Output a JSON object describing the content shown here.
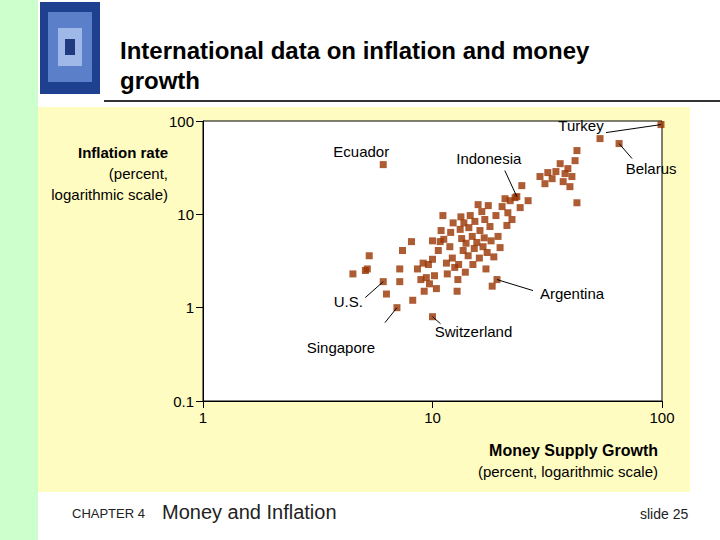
{
  "slide": {
    "title": "International data on inflation and money growth",
    "chapter": "CHAPTER 4",
    "chapter_title": "Money and Inflation",
    "slide_number": "slide 25"
  },
  "chart_data": {
    "type": "scatter",
    "x_label": [
      "Money Supply Growth",
      "(percent, logarithmic scale)"
    ],
    "y_label": [
      "Inflation rate",
      "(percent,",
      "logarithmic scale)"
    ],
    "x": [
      4.5,
      5.1,
      5.3,
      5.2,
      6.1,
      6.1,
      6.3,
      7.0,
      7.2,
      7.2,
      7.4,
      8.1,
      8.2,
      8.6,
      8.9,
      9.1,
      9.2,
      9.4,
      9.6,
      9.7,
      10.0,
      10.0,
      10.0,
      10.2,
      10.4,
      10.6,
      10.8,
      10.9,
      11.1,
      11.2,
      11.5,
      11.6,
      11.9,
      12.0,
      12.2,
      12.3,
      12.5,
      12.8,
      12.9,
      13.0,
      13.2,
      13.3,
      13.4,
      13.6,
      13.7,
      13.9,
      14.0,
      14.3,
      14.4,
      14.6,
      14.9,
      15.0,
      15.2,
      15.3,
      15.6,
      15.8,
      16.0,
      16.1,
      16.4,
      16.6,
      16.8,
      16.9,
      17.1,
      17.3,
      17.5,
      17.8,
      18.0,
      18.2,
      18.5,
      18.9,
      19.1,
      19.3,
      19.7,
      20.1,
      20.7,
      21.1,
      21.3,
      21.8,
      22.2,
      22.9,
      23.3,
      24.1,
      24.5,
      26.1,
      29.4,
      30.9,
      31.8,
      33.2,
      34.5,
      36.0,
      37.1,
      37.8,
      38.9,
      39.7,
      40.5,
      41.8,
      42.6,
      42.6,
      53.7,
      65.0,
      99.0
    ],
    "values": [
      2.3,
      2.5,
      3.6,
      2.6,
      34.1,
      1.9,
      1.4,
      1.0,
      2.6,
      1.9,
      4.1,
      5.1,
      1.2,
      2.6,
      2.0,
      3.0,
      1.5,
      2.1,
      2.9,
      1.8,
      5.2,
      0.8,
      3.3,
      2.2,
      1.6,
      4.1,
      5.1,
      6.7,
      9.7,
      5.4,
      3.0,
      2.3,
      4.5,
      6.4,
      3.4,
      8.1,
      2.7,
      1.5,
      2.0,
      2.9,
      6.9,
      9.4,
      5.5,
      4.1,
      8.1,
      2.4,
      4.9,
      3.6,
      7.2,
      9.7,
      5.8,
      2.9,
      4.3,
      8.4,
      5.0,
      12.7,
      3.4,
      6.7,
      10.7,
      4.5,
      5.6,
      8.8,
      2.6,
      3.9,
      12.4,
      7.4,
      5.2,
      1.7,
      3.5,
      9.7,
      2.0,
      5.8,
      4.4,
      12.1,
      14.7,
      7.6,
      10.4,
      14.0,
      8.8,
      15.1,
      15.5,
      11.8,
      20.3,
      14.0,
      25.4,
      21.3,
      28.0,
      24.1,
      28.7,
      34.9,
      22.4,
      27.3,
      30.9,
      19.8,
      25.4,
      37.6,
      48.2,
      13.3,
      64.8,
      57.3,
      91.5
    ],
    "color": "#993300",
    "marker": "square",
    "log": true,
    "grid": false,
    "xlim": [
      1,
      100
    ],
    "xticks": [
      1,
      10,
      100
    ],
    "ylim": [
      0.1,
      100
    ],
    "yticks": [
      0.1,
      1,
      10,
      100
    ],
    "annotations": [
      {
        "text": "Turkey",
        "x": 99.0,
        "y": 91.5
      },
      {
        "text": "Ecuador",
        "x": 6.1,
        "y": 34.1
      },
      {
        "text": "Indonesia",
        "x": 23.3,
        "y": 15.5
      },
      {
        "text": "Belarus",
        "x": 65.0,
        "y": 57.3
      },
      {
        "text": "Argentina",
        "x": 19.1,
        "y": 2.0
      },
      {
        "text": "U.S.",
        "x": 6.1,
        "y": 1.9
      },
      {
        "text": "Singapore",
        "x": 7.0,
        "y": 1.0
      },
      {
        "text": "Switzerland",
        "x": 10.0,
        "y": 0.8
      }
    ]
  }
}
